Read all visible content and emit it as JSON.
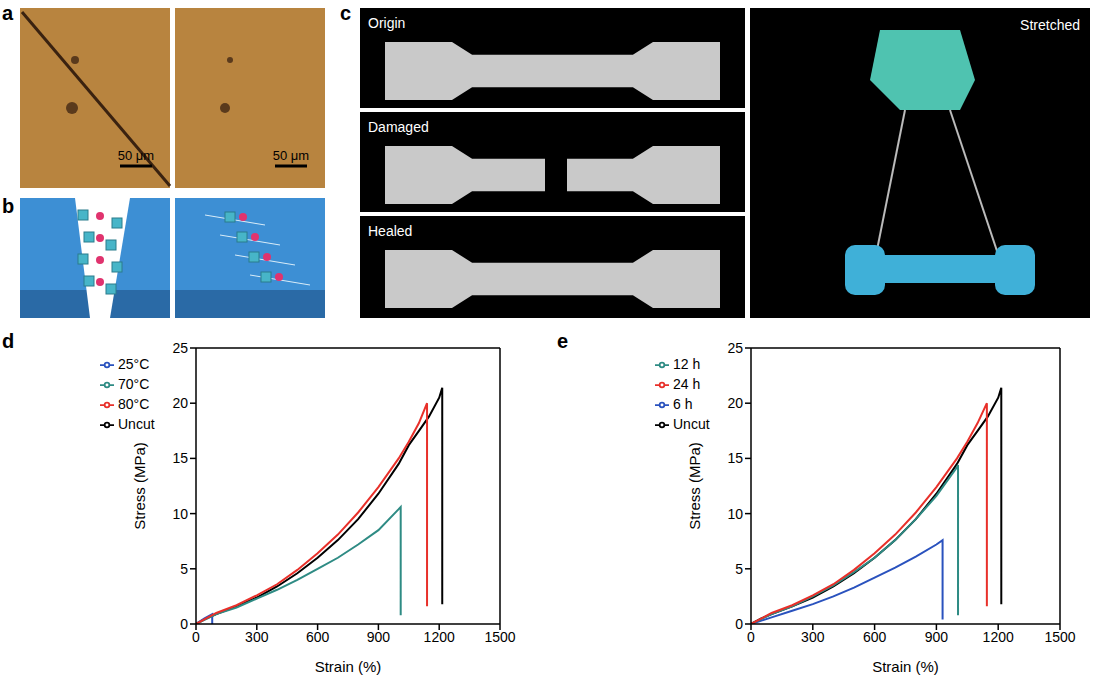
{
  "figure": {
    "a": {
      "panel": "a",
      "scale_bars": [
        "50 μm",
        "50 μm"
      ]
    },
    "b": {
      "panel": "b"
    },
    "c": {
      "panel": "c",
      "images": [
        "Origin",
        "Damaged",
        "Healed",
        "Stretched"
      ]
    }
  },
  "chart_data": [
    {
      "type": "line",
      "panel": "d",
      "x_label": "Strain (%)",
      "y_label": "Stress (MPa)",
      "xlim": [
        0,
        1500
      ],
      "xticks": [
        0,
        300,
        600,
        900,
        1200,
        1500
      ],
      "ylim": [
        0,
        25
      ],
      "yticks": [
        0,
        5,
        10,
        15,
        20,
        25
      ],
      "legend": "upper left",
      "series": [
        {
          "name": "Uncut",
          "color": "#000000",
          "x": [
            0,
            50,
            100,
            200,
            300,
            400,
            500,
            600,
            700,
            800,
            900,
            1000,
            1050,
            1100,
            1150,
            1200,
            1215,
            1215
          ],
          "values": [
            0,
            0.5,
            0.9,
            1.6,
            2.4,
            3.4,
            4.6,
            6.0,
            7.6,
            9.5,
            11.8,
            14.5,
            16.2,
            17.5,
            18.8,
            20.5,
            21.4,
            1.8
          ]
        },
        {
          "name": "25°C",
          "color": "#2a52be",
          "x": [
            0,
            40,
            80,
            80
          ],
          "values": [
            0,
            0.5,
            0.9,
            0
          ]
        },
        {
          "name": "70°C",
          "color": "#2e8b84",
          "x": [
            0,
            100,
            200,
            300,
            400,
            500,
            600,
            700,
            800,
            900,
            1000,
            1010,
            1010
          ],
          "values": [
            0,
            0.9,
            1.5,
            2.3,
            3.1,
            4.0,
            5.0,
            6.0,
            7.2,
            8.5,
            10.4,
            10.6,
            0.8
          ]
        },
        {
          "name": "80°C",
          "color": "#e8302a",
          "x": [
            0,
            100,
            200,
            300,
            400,
            500,
            600,
            700,
            800,
            900,
            1000,
            1050,
            1100,
            1140,
            1140
          ],
          "values": [
            0,
            1.0,
            1.7,
            2.6,
            3.6,
            4.9,
            6.4,
            8.1,
            10.1,
            12.4,
            15.0,
            16.5,
            18.2,
            20.0,
            1.6
          ]
        }
      ]
    },
    {
      "type": "line",
      "panel": "e",
      "x_label": "Strain (%)",
      "y_label": "Stress (MPa)",
      "xlim": [
        0,
        1500
      ],
      "xticks": [
        0,
        300,
        600,
        900,
        1200,
        1500
      ],
      "ylim": [
        0,
        25
      ],
      "yticks": [
        0,
        5,
        10,
        15,
        20,
        25
      ],
      "legend": "upper left",
      "series": [
        {
          "name": "Uncut",
          "color": "#000000",
          "x": [
            0,
            50,
            100,
            200,
            300,
            400,
            500,
            600,
            700,
            800,
            900,
            1000,
            1050,
            1100,
            1150,
            1200,
            1215,
            1215
          ],
          "values": [
            0,
            0.5,
            0.9,
            1.6,
            2.4,
            3.4,
            4.6,
            6.0,
            7.6,
            9.5,
            11.8,
            14.5,
            16.2,
            17.5,
            18.8,
            20.5,
            21.4,
            1.8
          ]
        },
        {
          "name": "6 h",
          "color": "#2a52be",
          "x": [
            0,
            100,
            200,
            300,
            400,
            500,
            600,
            700,
            800,
            900,
            930,
            930
          ],
          "values": [
            0,
            0.6,
            1.2,
            1.8,
            2.5,
            3.3,
            4.2,
            5.1,
            6.1,
            7.2,
            7.6,
            0.4
          ]
        },
        {
          "name": "12 h",
          "color": "#2e8b84",
          "x": [
            0,
            100,
            200,
            300,
            400,
            500,
            600,
            700,
            800,
            900,
            1000,
            1005,
            1005
          ],
          "values": [
            0,
            0.9,
            1.6,
            2.5,
            3.5,
            4.7,
            6.0,
            7.6,
            9.5,
            11.6,
            14.2,
            14.4,
            0.8
          ]
        },
        {
          "name": "24 h",
          "color": "#e8302a",
          "x": [
            0,
            100,
            200,
            300,
            400,
            500,
            600,
            700,
            800,
            900,
            1000,
            1050,
            1100,
            1145,
            1145
          ],
          "values": [
            0,
            1.0,
            1.7,
            2.6,
            3.6,
            4.9,
            6.4,
            8.1,
            10.1,
            12.4,
            15.0,
            16.5,
            18.2,
            20.0,
            1.6
          ]
        }
      ]
    }
  ]
}
